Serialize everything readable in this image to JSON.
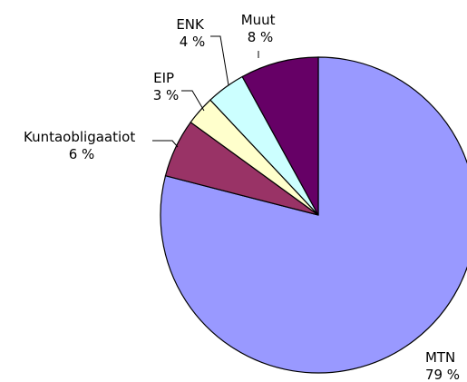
{
  "chart_data": {
    "type": "pie",
    "title": "",
    "slices": [
      {
        "label": "MTN",
        "value": 79,
        "value_label": "79 %",
        "color": "#9999ff"
      },
      {
        "label": "Kuntaobligaatiot",
        "value": 6,
        "value_label": "6 %",
        "color": "#993366"
      },
      {
        "label": "EIP",
        "value": 3,
        "value_label": "3 %",
        "color": "#ffffcc"
      },
      {
        "label": "ENK",
        "value": 4,
        "value_label": "4 %",
        "color": "#ccffff"
      },
      {
        "label": "Muut",
        "value": 8,
        "value_label": "8 %",
        "color": "#660066"
      }
    ],
    "start": "12 o'clock",
    "direction": "clockwise",
    "legend": "none"
  }
}
